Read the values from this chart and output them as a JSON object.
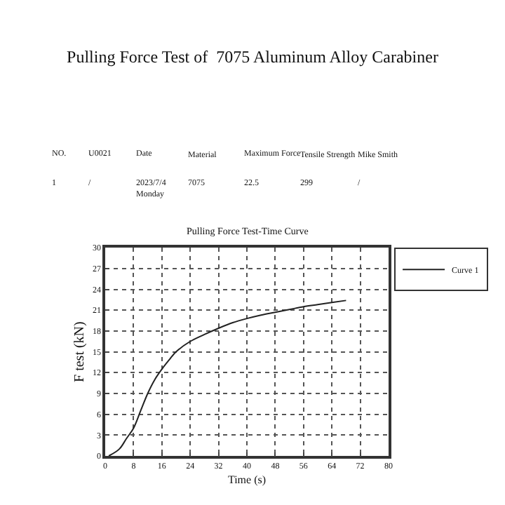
{
  "chart_data": {
    "type": "line",
    "title": "Pulling Force Test of  7075 Aluminum Alloy Carabiner",
    "subtitle": "Pulling Force Test-Time Curve",
    "xlabel": "Time (s)",
    "ylabel": "F test (kN)",
    "x": [
      1,
      4,
      6,
      8,
      10,
      12,
      14,
      16,
      18,
      20,
      24,
      28,
      32,
      36,
      40,
      44,
      48,
      52,
      56,
      60,
      64,
      68
    ],
    "series": [
      {
        "name": "Curve 1",
        "color": "#222222",
        "values": [
          0,
          1,
          2.5,
          4,
          6.5,
          9,
          11,
          12.5,
          13.8,
          15,
          16.5,
          17.5,
          18.4,
          19.2,
          19.8,
          20.3,
          20.7,
          21.1,
          21.5,
          21.8,
          22.1,
          22.4
        ]
      }
    ],
    "xlim": [
      0,
      80
    ],
    "xticks": [
      0,
      8,
      16,
      24,
      32,
      40,
      48,
      56,
      64,
      72,
      80
    ],
    "ylim": [
      0,
      30
    ],
    "yticks": [
      0,
      3,
      6,
      9,
      12,
      15,
      18,
      21,
      24,
      27,
      30
    ],
    "grid": true,
    "legend": "top right",
    "line_style": "solid",
    "marker": "none",
    "annotations": [
      "NO.",
      "U0021",
      "Date",
      "Material",
      "Maximum Force",
      "Tensile Strength",
      "Mike Smith",
      "1",
      "/",
      "2023/7/4\nMonday",
      "7075",
      "22.5",
      "299",
      "/"
    ]
  }
}
